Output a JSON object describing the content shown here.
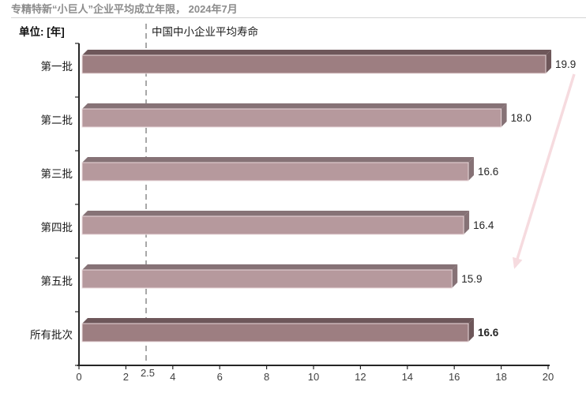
{
  "header": {
    "title": "专精特新“小巨人”企业平均成立年限， 2024年7月",
    "unit_label": "单位: [年]"
  },
  "chart_data": {
    "type": "bar",
    "orientation": "horizontal",
    "title": "专精特新“小巨人”企业平均成立年限， 2024年7月",
    "unit": "单位: [年]",
    "categories": [
      "第一批",
      "第二批",
      "第三批",
      "第四批",
      "第五批",
      "所有批次"
    ],
    "values": [
      19.9,
      18.0,
      16.6,
      16.4,
      15.9,
      16.6
    ],
    "value_labels": [
      "19.9",
      "18.0",
      "16.6",
      "16.4",
      "15.9",
      "16.6"
    ],
    "value_bold": [
      false,
      false,
      false,
      false,
      false,
      true
    ],
    "emphasis": [
      true,
      false,
      false,
      false,
      false,
      true
    ],
    "xlim": [
      0,
      20
    ],
    "x_ticks": [
      0,
      2,
      4,
      6,
      8,
      10,
      12,
      14,
      16,
      18,
      20
    ],
    "grid": false,
    "legend": "none",
    "reference_line": {
      "value": 2.5,
      "label": "2.5",
      "title": "中国中小企业平均寿命",
      "style": "dashed"
    },
    "annotations": [
      {
        "type": "arrow",
        "direction": "down-left",
        "meaning": "declining trend across batches"
      }
    ],
    "colors": {
      "bar_dark_front": "#9d7e81",
      "bar_dark_depth": "#6e575a",
      "bar_light_front": "#b6999d",
      "bar_light_depth": "#867276",
      "bar_edge": "#e9d8da",
      "axis": "#262626",
      "category_label": "#1a1a1a",
      "tick_label": "#404040",
      "value_label": "#262626",
      "reference_line_color": "#a8a8a8",
      "arrow": "#f6dbdf",
      "title_color": "#8c8c8c"
    }
  }
}
